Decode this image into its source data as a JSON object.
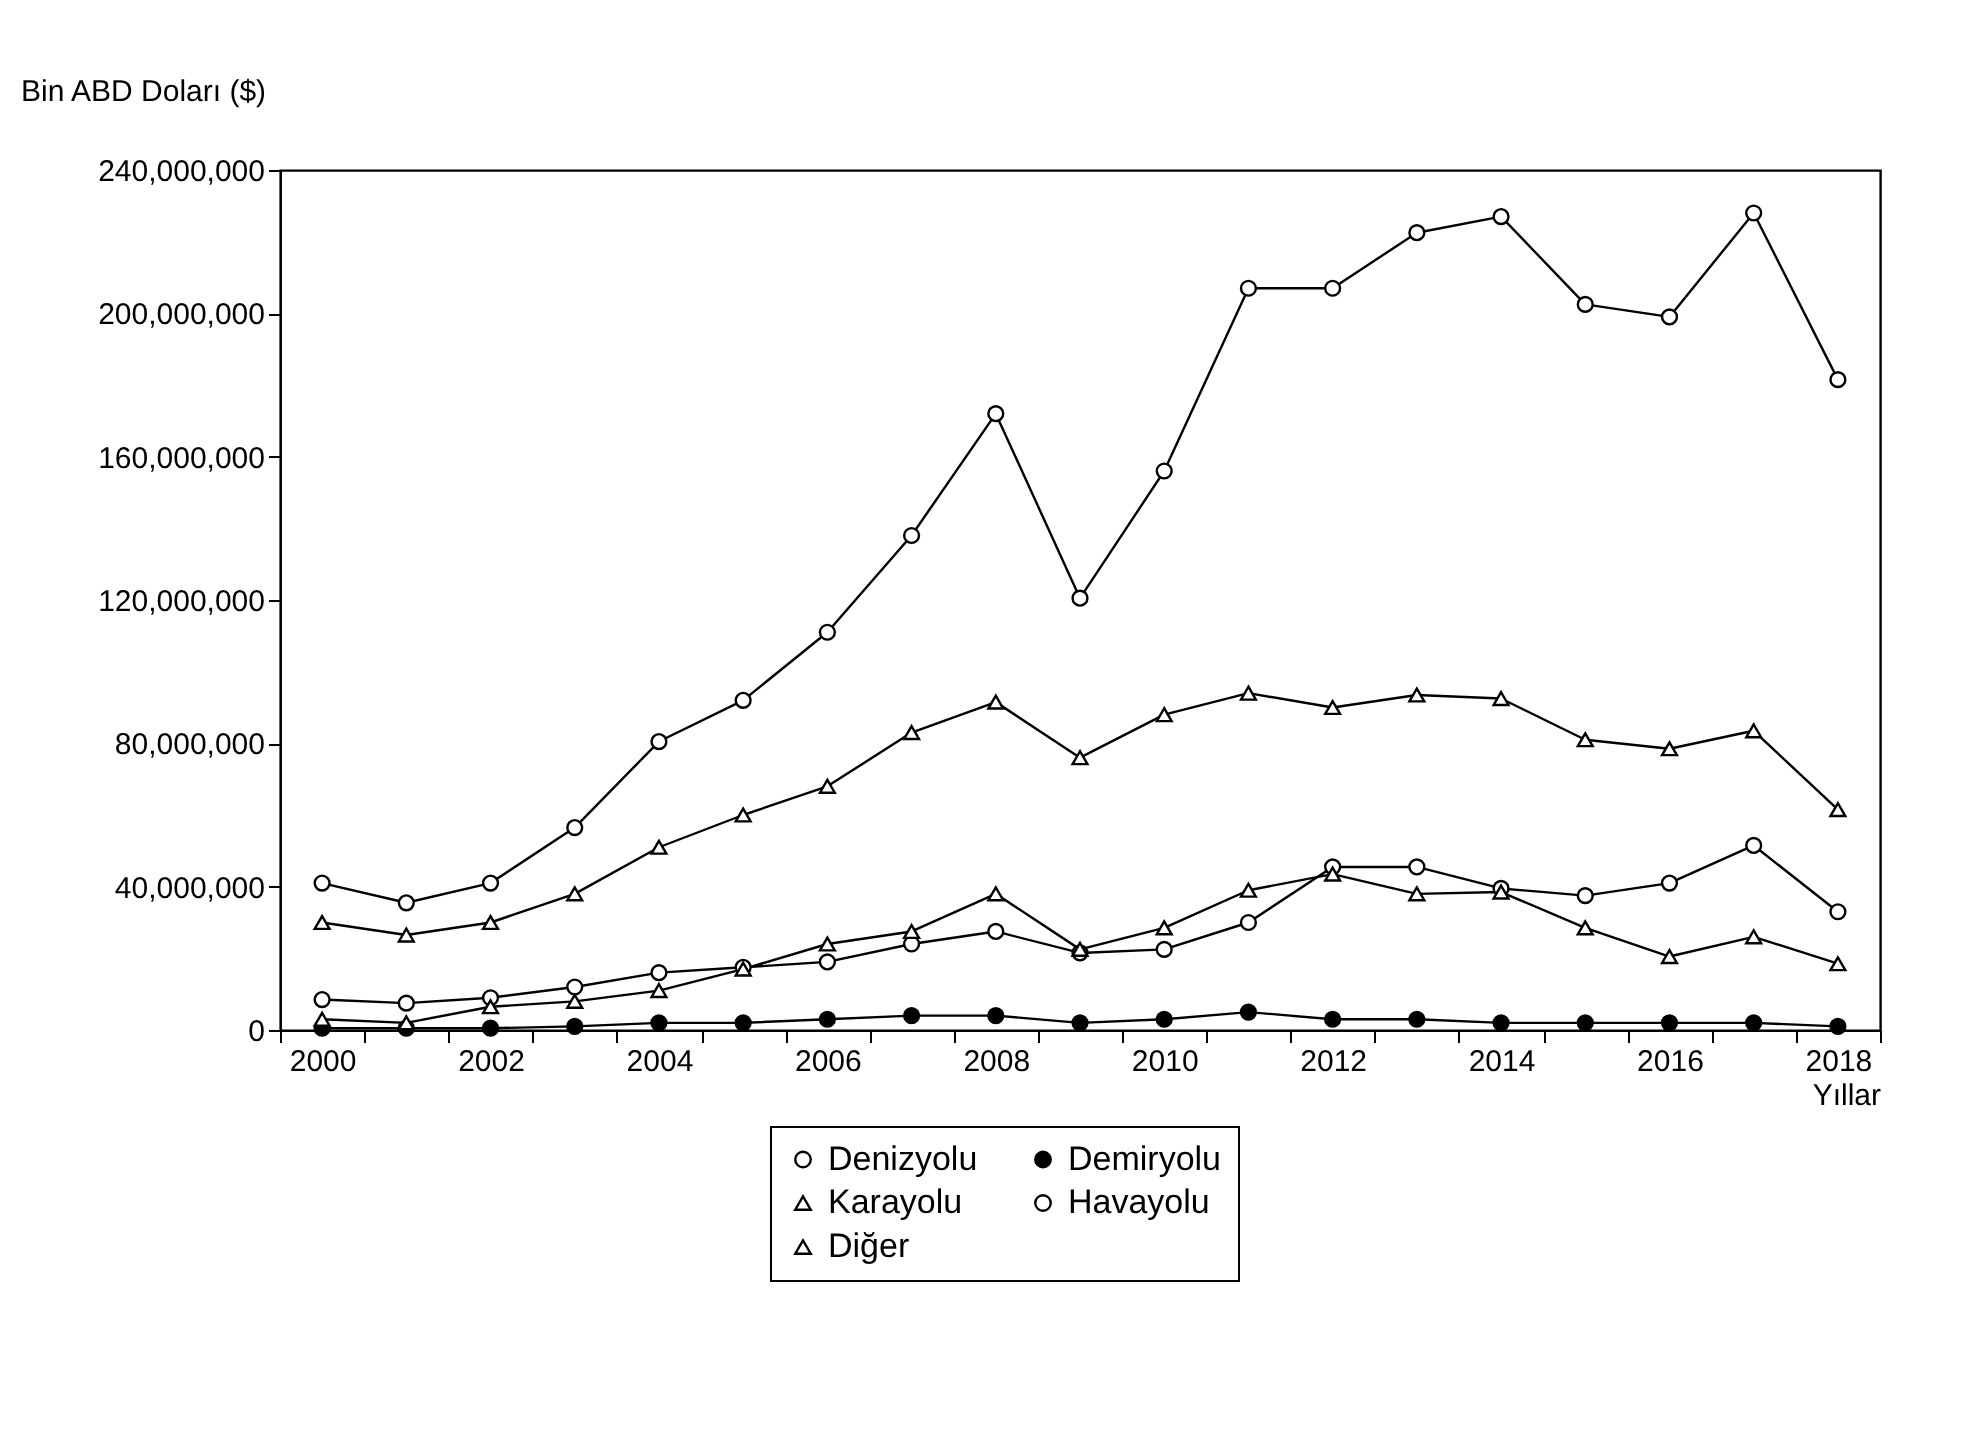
{
  "chart_data": {
    "type": "line",
    "xlabel": "Yıllar",
    "ylabel": "Bin ABD Doları ($)",
    "categories": [
      "2000",
      null,
      "2002",
      null,
      "2004",
      null,
      "2006",
      null,
      "2008",
      null,
      "2010",
      null,
      "2012",
      null,
      "2014",
      null,
      "2016",
      null,
      "2018"
    ],
    "ylim": [
      0,
      240000000
    ],
    "yticks": [
      0,
      {
        "value": 40000000,
        "label": "40,000,000"
      },
      {
        "value": 80000000,
        "label": "80,000,000"
      },
      {
        "value": 120000000,
        "label": "120,000,000"
      },
      {
        "value": 160000000,
        "label": "160,000,000"
      },
      {
        "value": 200000000,
        "label": "200,000,000"
      },
      {
        "value": 240000000,
        "label": "240,000,000"
      }
    ],
    "grid": false,
    "legend": "bottom",
    "series": [
      {
        "name": "Denizyolu",
        "color": "#000000",
        "marker": "circle",
        "values": [
          41000000,
          35500000,
          41000000,
          56500000,
          80500000,
          92000000,
          111000000,
          138000000,
          172000000,
          120500000,
          156000000,
          207000000,
          207000000,
          222500000,
          227000000,
          202500000,
          199000000,
          228000000,
          181500000
        ]
      },
      {
        "name": "Demiryolu",
        "color": "#000000",
        "marker": "filled circle",
        "values": [
          500000,
          500000,
          500000,
          1000000,
          2000000,
          2000000,
          3000000,
          4000000,
          4000000,
          2000000,
          3000000,
          5000000,
          3000000,
          3000000,
          2000000,
          2000000,
          2000000,
          2000000,
          1000000
        ]
      },
      {
        "name": "Karayolu",
        "color": "#000000",
        "marker": "triangle",
        "values": [
          30000000,
          26500000,
          30000000,
          38000000,
          51000000,
          60000000,
          68000000,
          83000000,
          91500000,
          76000000,
          88000000,
          94000000,
          90000000,
          93500000,
          92500000,
          81000000,
          78500000,
          83500000,
          61500000
        ]
      },
      {
        "name": "Havayolu",
        "color": "#000000",
        "marker": "circle",
        "values": [
          8500000,
          7500000,
          9000000,
          12000000,
          16000000,
          17500000,
          19000000,
          24000000,
          27500000,
          21500000,
          22500000,
          30000000,
          45500000,
          45500000,
          39500000,
          37500000,
          41000000,
          51500000,
          33000000
        ]
      },
      {
        "name": "Diğer",
        "color": "#000000",
        "marker": "triangle",
        "values": [
          3000000,
          2000000,
          6500000,
          8000000,
          11000000,
          17000000,
          24000000,
          27500000,
          38000000,
          22500000,
          28500000,
          39000000,
          43500000,
          38000000,
          38500000,
          28500000,
          20500000,
          26000000,
          18500000
        ]
      }
    ]
  }
}
